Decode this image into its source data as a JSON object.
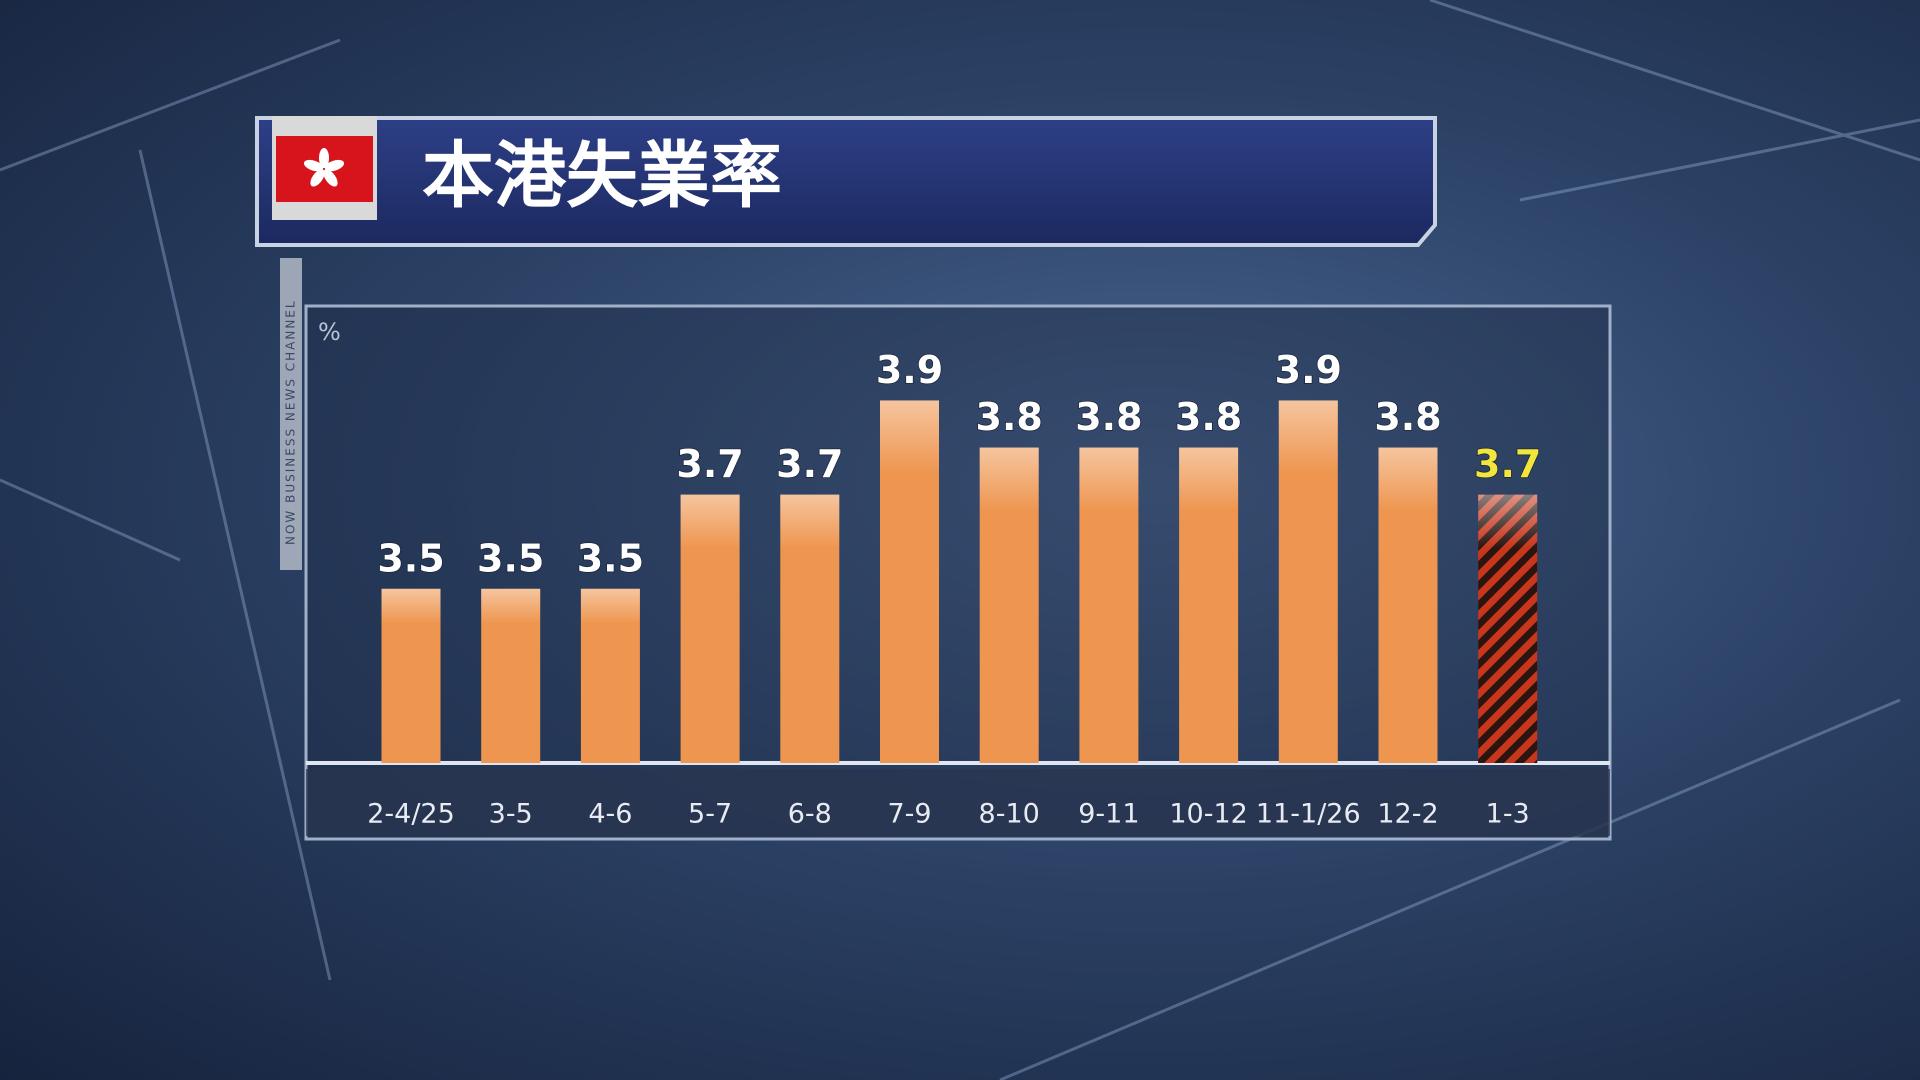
{
  "chart_data": {
    "type": "bar",
    "title": "本港失業率",
    "y_unit": "%",
    "channel": "NOW BUSINESS NEWS CHANNEL",
    "categories": [
      "2-4/25",
      "3-5",
      "4-6",
      "5-7",
      "6-8",
      "7-9",
      "8-10",
      "9-11",
      "10-12",
      "11-1/26",
      "12-2",
      "1-3"
    ],
    "values": [
      3.5,
      3.5,
      3.5,
      3.7,
      3.7,
      3.9,
      3.8,
      3.8,
      3.8,
      3.9,
      3.8,
      3.7
    ],
    "colors": [
      "#ee9650",
      "#ee9650",
      "#ee9650",
      "#ee9650",
      "#ee9650",
      "#ee9650",
      "#ee9650",
      "#ee9650",
      "#ee9650",
      "#ee9650",
      "#ee9650",
      "#c8361c"
    ],
    "hatched": [
      false,
      false,
      false,
      false,
      false,
      false,
      false,
      false,
      false,
      false,
      false,
      true
    ],
    "label_colors": [
      "#ffffff",
      "#ffffff",
      "#ffffff",
      "#ffffff",
      "#ffffff",
      "#ffffff",
      "#ffffff",
      "#ffffff",
      "#ffffff",
      "#ffffff",
      "#ffffff",
      "#f2e63c"
    ],
    "ylim": [
      3.13,
      4.09
    ]
  }
}
